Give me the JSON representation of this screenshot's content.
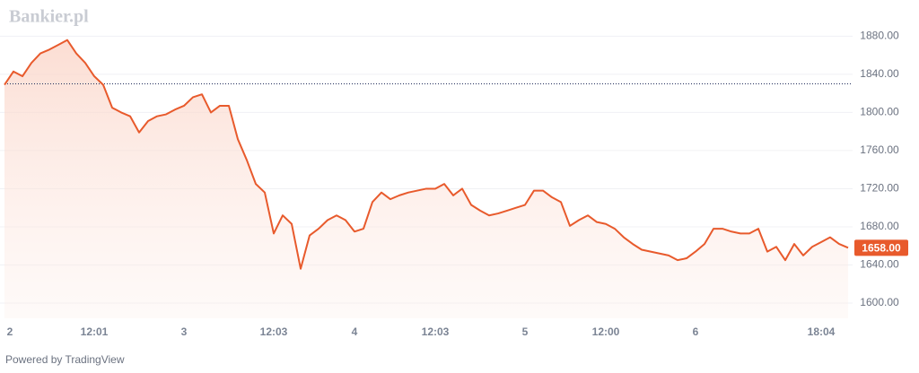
{
  "brand": "Bankier.pl",
  "footer": "Powered by TradingView",
  "chart_data": {
    "type": "line",
    "categories": [
      "2",
      null,
      null,
      null,
      null,
      null,
      null,
      null,
      null,
      null,
      "12:01",
      null,
      null,
      null,
      null,
      null,
      null,
      null,
      null,
      null,
      "3",
      null,
      null,
      null,
      null,
      null,
      null,
      null,
      null,
      null,
      "12:03",
      null,
      null,
      null,
      null,
      null,
      null,
      null,
      null,
      "4",
      null,
      null,
      null,
      null,
      null,
      null,
      null,
      null,
      "12:03",
      null,
      null,
      null,
      null,
      null,
      null,
      null,
      null,
      null,
      "5",
      null,
      null,
      null,
      null,
      null,
      null,
      null,
      null,
      "12:00",
      null,
      null,
      null,
      null,
      null,
      null,
      null,
      null,
      null,
      "6",
      null,
      null,
      null,
      null,
      null,
      null,
      null,
      null,
      null,
      null,
      null,
      null,
      null,
      "18:04",
      null,
      null,
      null
    ],
    "values": [
      1829,
      1843,
      1838,
      1852,
      1862,
      1866,
      1871,
      1876,
      1862,
      1852,
      1838,
      1829,
      1805,
      1800,
      1796,
      1779,
      1791,
      1796,
      1798,
      1803,
      1807,
      1816,
      1819,
      1800,
      1807,
      1807,
      1772,
      1750,
      1725,
      1716,
      1673,
      1692,
      1683,
      1636,
      1671,
      1678,
      1687,
      1692,
      1687,
      1675,
      1678,
      1706,
      1716,
      1709,
      1713,
      1716,
      1718,
      1720,
      1720,
      1725,
      1713,
      1720,
      1703,
      1697,
      1692,
      1694,
      1697,
      1700,
      1703,
      1718,
      1718,
      1711,
      1706,
      1681,
      1687,
      1692,
      1685,
      1683,
      1678,
      1669,
      1662,
      1656,
      1654,
      1652,
      1650,
      1645,
      1647,
      1654,
      1662,
      1678,
      1678,
      1675,
      1673,
      1673,
      1678,
      1654,
      1659,
      1645,
      1662,
      1650,
      1659,
      1664,
      1669,
      1662,
      1658
    ],
    "color": "#e85a2c",
    "ylim": [
      1584,
      1918
    ],
    "yticks": [
      {
        "value": 1600,
        "label": "1600.00"
      },
      {
        "value": 1640,
        "label": "1640.00"
      },
      {
        "value": 1680,
        "label": "1680.00"
      },
      {
        "value": 1720,
        "label": "1720.00"
      },
      {
        "value": 1760,
        "label": "1760.00"
      },
      {
        "value": 1800,
        "label": "1800.00"
      },
      {
        "value": 1840,
        "label": "1840.00"
      },
      {
        "value": 1880,
        "label": "1880.00"
      }
    ],
    "reference_line": 1830,
    "last_price": {
      "value": 1658,
      "label": "1658.00"
    },
    "grid": true
  }
}
